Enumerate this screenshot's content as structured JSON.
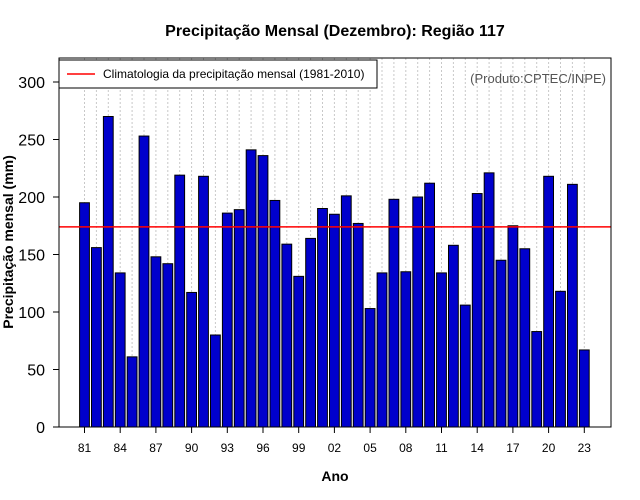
{
  "chart_data": {
    "type": "bar",
    "title": "Precipitação Mensal (Dezembro): Região 117",
    "xlabel": "Ano",
    "ylabel": "Precipitação mensal (mm)",
    "ylim": [
      0,
      320
    ],
    "yticks": [
      0,
      50,
      100,
      150,
      200,
      250,
      300
    ],
    "years": [
      1981,
      1982,
      1983,
      1984,
      1985,
      1986,
      1987,
      1988,
      1989,
      1990,
      1991,
      1992,
      1993,
      1994,
      1995,
      1996,
      1997,
      1998,
      1999,
      2000,
      2001,
      2002,
      2003,
      2004,
      2005,
      2006,
      2007,
      2008,
      2009,
      2010,
      2011,
      2012,
      2013,
      2014,
      2015,
      2016,
      2017,
      2018,
      2019,
      2020,
      2021,
      2022,
      2023
    ],
    "values": [
      195,
      156,
      270,
      134,
      61,
      253,
      148,
      142,
      219,
      117,
      218,
      80,
      186,
      189,
      241,
      236,
      197,
      159,
      131,
      164,
      190,
      185,
      201,
      177,
      103,
      134,
      198,
      135,
      200,
      212,
      134,
      158,
      106,
      203,
      221,
      145,
      175,
      155,
      83,
      218,
      118,
      211,
      67
    ],
    "xtick_labels": [
      "81",
      "84",
      "87",
      "90",
      "93",
      "96",
      "99",
      "02",
      "05",
      "08",
      "11",
      "14",
      "17",
      "20",
      "23"
    ],
    "xtick_years": [
      1981,
      1984,
      1987,
      1990,
      1993,
      1996,
      1999,
      2002,
      2005,
      2008,
      2011,
      2014,
      2017,
      2020,
      2023
    ],
    "reference_line": {
      "value": 174,
      "label": "Climatologia da precipitação mensal (1981-2010)",
      "color": "#ff0000"
    },
    "bar_color": "#0000cc",
    "grid": true,
    "legend_position": "top-left",
    "credit": "(Produto:CPTEC/INPE)"
  }
}
